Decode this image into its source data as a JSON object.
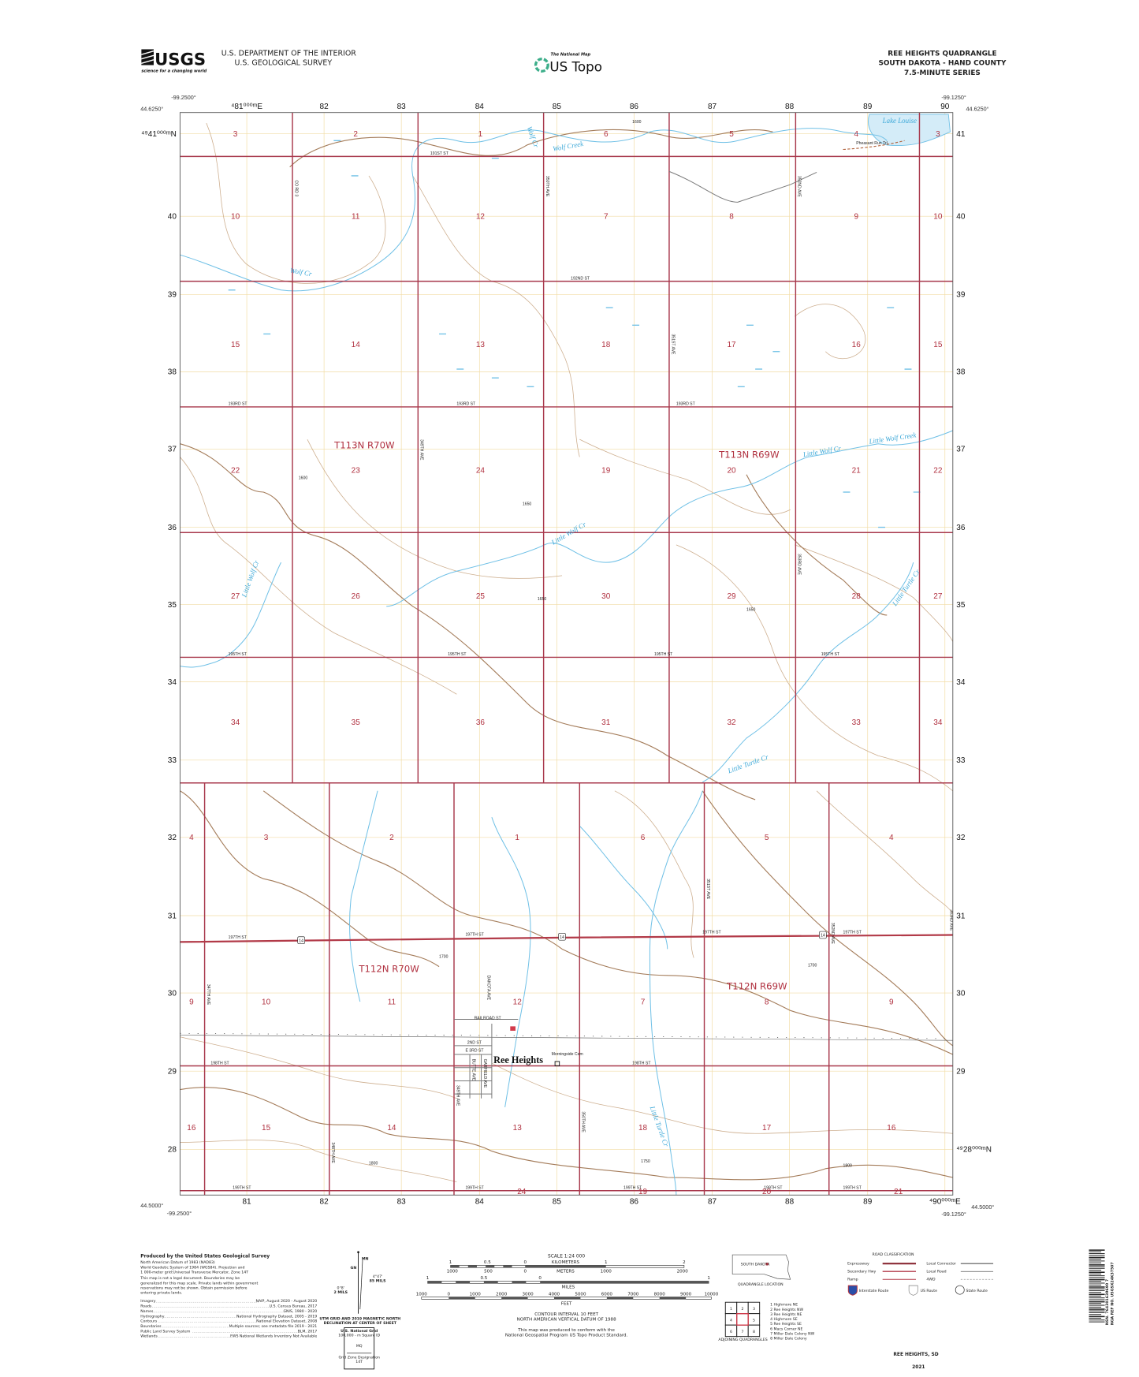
{
  "header": {
    "usgs_logo": "USGS",
    "usgs_tagline": "science for a changing world",
    "agency_line1": "U.S. DEPARTMENT OF THE INTERIOR",
    "agency_line2": "U.S. GEOLOGICAL SURVEY",
    "national_map": "The National Map",
    "us_topo": "US Topo",
    "quad_title": "REE HEIGHTS QUADRANGLE",
    "quad_subtitle": "SOUTH DAKOTA - HAND COUNTY",
    "series": "7.5-MINUTE SERIES"
  },
  "map": {
    "corners": {
      "nw_lon": "-99.2500°",
      "nw_lat": "44.6250°",
      "ne_lon": "-99.1250°",
      "ne_lat": "44.6250°",
      "sw_lat": "44.5000°",
      "sw_lon": "-99.2500°",
      "se_lat": "44.5000°",
      "se_lon": "-99.1250°"
    },
    "eastings_top": [
      "⁴81⁰⁰⁰ᵐE",
      "82",
      "83",
      "84",
      "85",
      "86",
      "87",
      "88",
      "89",
      "90"
    ],
    "eastings_bottom": [
      "81",
      "82",
      "83",
      "84",
      "85",
      "86",
      "87",
      "88",
      "89",
      "⁴90⁰⁰⁰ᵐE"
    ],
    "northings_left": [
      "⁴⁹41⁰⁰⁰ᵐN",
      "40",
      "39",
      "38",
      "37",
      "36",
      "35",
      "34",
      "33",
      "32",
      "31",
      "30",
      "29",
      "28"
    ],
    "northings_right": [
      "41",
      "40",
      "39",
      "38",
      "37",
      "36",
      "35",
      "34",
      "33",
      "32",
      "31",
      "30",
      "29",
      "⁴⁹28⁰⁰⁰ᵐN"
    ],
    "sections_upper": [
      [
        "3",
        "2",
        "1",
        "6",
        "5",
        "4",
        "3"
      ],
      [
        "10",
        "11",
        "12",
        "7",
        "8",
        "9",
        "10"
      ],
      [
        "15",
        "14",
        "13",
        "18",
        "17",
        "16",
        "15"
      ],
      [
        "22",
        "23",
        "24",
        "19",
        "20",
        "21",
        "22"
      ],
      [
        "27",
        "26",
        "25",
        "30",
        "29",
        "28",
        "27"
      ],
      [
        "34",
        "35",
        "36",
        "31",
        "32",
        "33",
        "34"
      ]
    ],
    "sections_lower": [
      [
        "4",
        "3",
        "2",
        "1",
        "6",
        "5",
        "4"
      ],
      [
        "9",
        "10",
        "11",
        "12",
        "7",
        "8",
        "9"
      ],
      [
        "16",
        "15",
        "14",
        "13",
        "18",
        "17",
        "16"
      ],
      [
        "24",
        "19",
        "20",
        "21"
      ]
    ],
    "townships": [
      "T113N R70W",
      "T113N R69W",
      "T112N R70W",
      "T112N R69W"
    ],
    "roads": [
      "191ST ST",
      "192ND ST",
      "193RD ST",
      "193RD ST",
      "193RD ST",
      "195TH ST",
      "195TH ST",
      "195TH ST",
      "195TH ST",
      "197TH ST",
      "197TH ST",
      "197TH ST",
      "197TH ST",
      "198TH ST",
      "198TH ST",
      "199TH ST",
      "199TH ST",
      "199TH ST",
      "199TH ST",
      "199TH ST",
      "CO RD 3",
      "349TH AVE",
      "350TH AVE",
      "351ST AVE",
      "352ND AVE",
      "353RD AVE",
      "347TH AVE",
      "348TH AVE",
      "DAKOTA AVE",
      "350TH AVE",
      "351ST AVE",
      "352ND AVE",
      "353RD AVE",
      "349TH AVE",
      "RAILROAD ST",
      "2ND ST",
      "E 3RD ST",
      "BUTTE AVE",
      "GARFIELD AVE",
      "Pheasant Run Trl"
    ],
    "route_shield": "14",
    "water_labels": [
      "Lake Louise",
      "Wolf Creek",
      "Wolf Cr",
      "Wolf Cr",
      "Little Wolf Cr",
      "Little Wolf Creek",
      "Little Wolf Cr",
      "Little Wolf Cr",
      "Little Turtle Cr",
      "Little Turtle Cr",
      "Little Turtle Cr"
    ],
    "town": "Ree Heights",
    "cemetery": "Morningside Cem",
    "contour_labels": [
      "1600",
      "1650",
      "1600",
      "1650",
      "1650",
      "1700",
      "1700",
      "1750",
      "1800",
      "1800"
    ],
    "colors": {
      "section_line": "#a8384c",
      "water": "#6fc0e6",
      "lake_fill": "#d4ecf8",
      "contour": "#cdae8e",
      "index_contour": "#a47c5a",
      "grid": "#f2dca4",
      "road": "#7a7a7a",
      "highway": "#b23a48"
    }
  },
  "footer": {
    "producer": "Produced by the United States Geological Survey",
    "datum_lines": [
      "North American Datum of 1983 (NAD83)",
      "World Geodetic System of 1984 (WGS84).  Projection and",
      "1 000-meter grid:Universal Transverse Mercator, Zone 14T"
    ],
    "disclaimer": [
      "This map is not a legal document. Boundaries may be",
      "generalized for this map scale. Private lands within government",
      "reservations may not be shown. Obtain permission before",
      "entering private lands."
    ],
    "sources": [
      [
        "Imagery",
        "NAIP, August 2020 - August 2020"
      ],
      [
        "Roads",
        "U.S. Census Bureau, 2017"
      ],
      [
        "Names",
        "GNIS, 1980 - 2020"
      ],
      [
        "Hydrography",
        "National Hydrography Dataset, 2005 - 2019"
      ],
      [
        "Contours",
        "National Elevation Dataset, 2008"
      ],
      [
        "Boundaries",
        "Multiple sources; see metadata file 2019 - 2021"
      ],
      [
        "Public Land Survey System",
        "BLM, 2017"
      ],
      [
        "Wetlands",
        "FWS National Wetlands Inventory Not Available"
      ]
    ],
    "declination": {
      "mn": "MN",
      "gn": "GN",
      "grid_angle": "0°8'",
      "grid_mils": "2 MILS",
      "mag_angle": "4°47'",
      "mag_mils": "85 MILS",
      "caption1": "UTM GRID AND 2019 MAGNETIC NORTH",
      "caption2": "DECLINATION AT CENTER OF SHEET"
    },
    "national_grid": {
      "title": "U.S. National Grid",
      "square_label": "100,000 - m Square ID",
      "square_id": "MQ",
      "zone_label": "Grid Zone Designation",
      "zone": "14T"
    },
    "scale": {
      "title": "SCALE 1:24 000",
      "km_ticks": [
        "1",
        "0.5",
        "0",
        "1",
        "2"
      ],
      "km_unit": "KILOMETERS",
      "m_ticks": [
        "1000",
        "500",
        "0",
        "1000",
        "2000"
      ],
      "m_unit": "METERS",
      "mi_ticks": [
        "1",
        "0.5",
        "0",
        "1"
      ],
      "mi_unit": "MILES",
      "ft_ticks": [
        "1000",
        "0",
        "1000",
        "2000",
        "3000",
        "4000",
        "5000",
        "6000",
        "7000",
        "8000",
        "9000",
        "10000"
      ],
      "ft_unit": "FEET"
    },
    "contour_interval": "CONTOUR INTERVAL 10 FEET",
    "vertical_datum": "NORTH AMERICAN VERTICAL DATUM OF 1988",
    "standard": [
      "This map was produced to conform with the",
      "National Geospatial Program US Topo Product Standard."
    ],
    "location": {
      "state": "SOUTH DAKOTA",
      "caption": "QUADRANGLE LOCATION"
    },
    "adjoining": {
      "cells": [
        "1",
        "2",
        "3",
        "4",
        "",
        "5",
        "6",
        "7",
        "8"
      ],
      "names": [
        "1 Highmore NE",
        "2 Ree Heights NW",
        "3 Ree Heights NE",
        "4 Highmore SE",
        "5 Ree Heights SE",
        "6 Macs Corner NE",
        "7 Miller Dale Colony NW",
        "8 Miller Dale Colony"
      ],
      "caption": "ADJOINING QUADRANGLES"
    },
    "road_classification": {
      "title": "ROAD CLASSIFICATION",
      "left": [
        "Expressway",
        "Secondary Hwy",
        "Ramp"
      ],
      "right": [
        "Local Connector",
        "Local Road",
        "4WD"
      ],
      "shields": [
        "Interstate Route",
        "US Route",
        "State Route"
      ]
    },
    "sheet_name": "REE HEIGHTS,  SD",
    "year": "2021",
    "barcode": {
      "nsn": "NSN. 764301639690 7",
      "nga": "NGA REF NO. USGSX24K37507"
    }
  }
}
